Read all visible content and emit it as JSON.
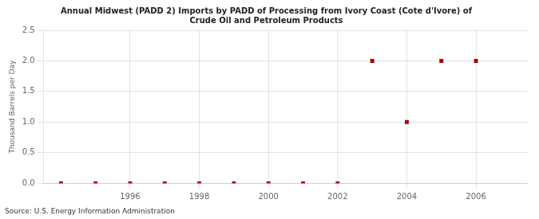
{
  "chart_data": {
    "type": "scatter",
    "title": "Annual Midwest (PADD 2) Imports by PADD of Processing from Ivory Coast (Cote d'Ivore) of\nCrude Oil and Petroleum Products",
    "ylabel": "Thousand Barrels per Day",
    "annotation": "Source: U.S. Energy Information Administration",
    "x": [
      1994,
      1995,
      1996,
      1997,
      1998,
      1999,
      2000,
      2001,
      2002,
      2003,
      2004,
      2005,
      2006
    ],
    "values": [
      0.0,
      0.0,
      0.0,
      0.0,
      0.0,
      0.0,
      0.0,
      0.0,
      0.0,
      2.0,
      1.0,
      2.0,
      2.0
    ],
    "color": "#aa0000",
    "marker": "square",
    "xlim": [
      1993.5,
      2007.5
    ],
    "xticks": [
      1996,
      1998,
      2000,
      2002,
      2004,
      2006
    ],
    "ylim": [
      0.0,
      2.5
    ],
    "yticks": [
      {
        "value": 0.0,
        "label": "0.0"
      },
      0.5,
      {
        "value": 1.0,
        "label": "1.0"
      },
      1.5,
      {
        "value": 2.0,
        "label": "2.0"
      },
      2.5
    ],
    "grid": true
  }
}
